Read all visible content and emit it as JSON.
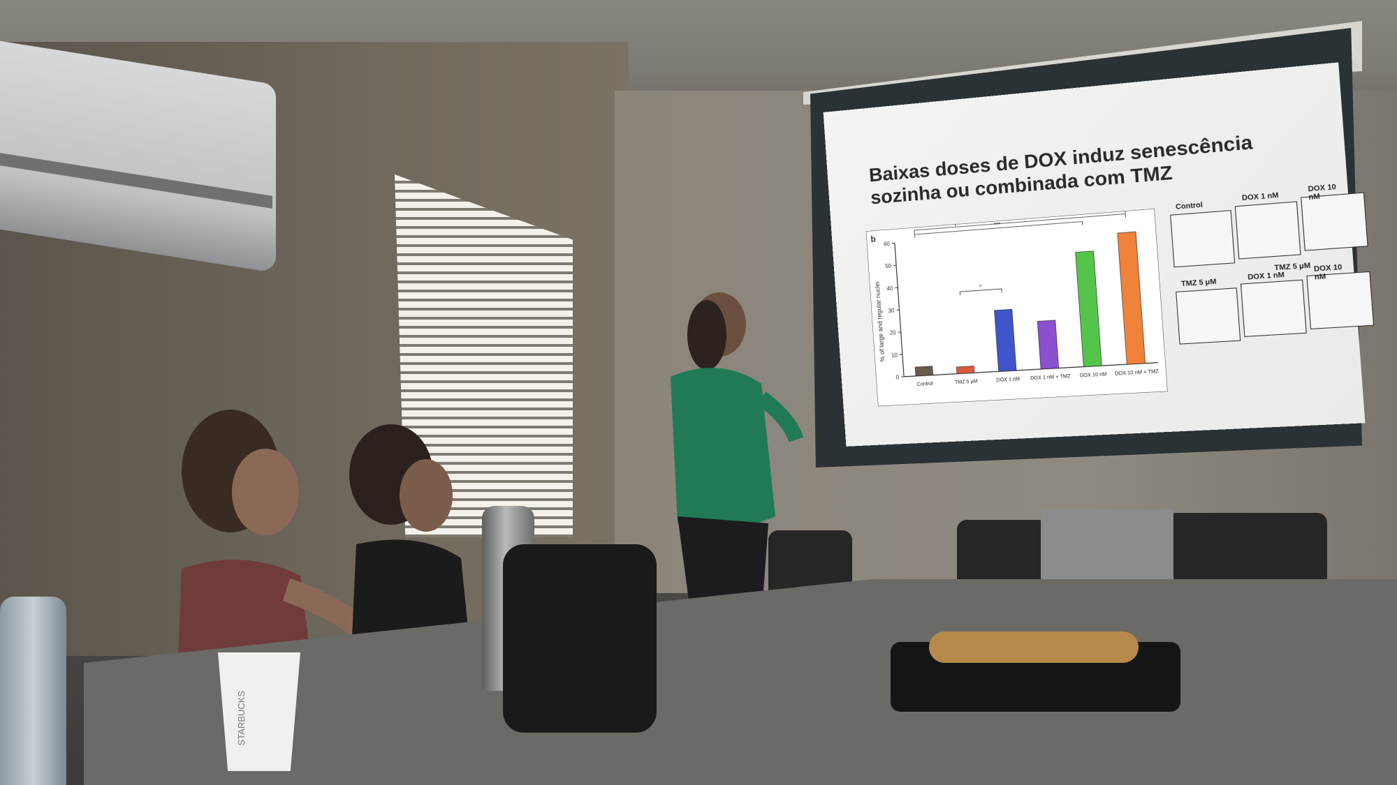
{
  "slide": {
    "title": "Baixas doses de DOX induz senescência sozinha ou combinada com TMZ",
    "panel_letter": "b"
  },
  "chart_data": {
    "type": "bar",
    "ylabel": "% of large and regular nuclei",
    "ylim": [
      0,
      60
    ],
    "yticks": [
      "0",
      "10",
      "20",
      "30",
      "40",
      "50",
      "60"
    ],
    "categories": [
      "Control",
      "TMZ 5 μM",
      "DOX 1 nM",
      "DOX 1 nM + TMZ",
      "DOX 10 nM",
      "DOX 10 nM + TMZ"
    ],
    "values": [
      4,
      3,
      27,
      21,
      50,
      57
    ],
    "colors": [
      "#6b5a4a",
      "#d75a3a",
      "#3f55c9",
      "#8b4fd0",
      "#55c44a",
      "#f0823a"
    ],
    "significance": [
      "*",
      "***",
      "***",
      "***"
    ]
  },
  "micrographs": {
    "row1": [
      "Control",
      "DOX 1 nM",
      "DOX 10 nM"
    ],
    "header2": "TMZ 5 μM",
    "row2": [
      "TMZ 5 μM",
      "DOX 1 nM",
      "DOX 10 nM"
    ]
  },
  "cup_text": "STARBUCKS"
}
